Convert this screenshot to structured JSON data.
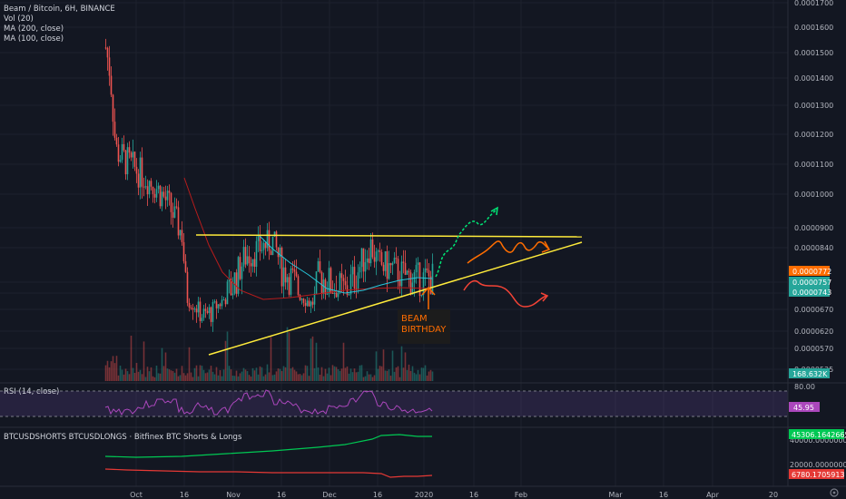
{
  "header": {
    "symbol": "Beam / Bitcoin, 6H, BINANCE",
    "vol": "Vol (20)",
    "ma200": "MA (200, close)",
    "ma100": "MA (100, close)"
  },
  "rsi_label": "RSI (14, close)",
  "shorts_label": "BTCUSDSHORTS BTCUSDLONGS · Bitfinex BTC Shorts & Longs",
  "annotation": {
    "line1": "BEAM",
    "line2": "BIRTHDAY"
  },
  "colors": {
    "bg": "#131722",
    "grid": "#1e222d",
    "up": "#26a69a",
    "down": "#ef5350",
    "ma200": "#b71c1c",
    "ma100": "#26c6da",
    "trend": "#ffeb3b",
    "arrow_green": "#00e676",
    "arrow_orange": "#ff6d00",
    "arrow_red": "#f44336",
    "rsi": "#ab47bc",
    "shorts": "#00c853",
    "longs": "#e53935"
  },
  "price_axis": [
    "0.0001700",
    "0.0001600",
    "0.0001500",
    "0.0001400",
    "0.0001300",
    "0.0001200",
    "0.0001100",
    "0.0001000",
    "0.0000900",
    "0.0000840",
    "0.0000757",
    "0.0000743",
    "0.0000670",
    "0.0000620",
    "0.0000570",
    "0.0000525"
  ],
  "price_badges": [
    {
      "text": "0.0000772",
      "color": "#ff6d00"
    },
    {
      "text": "0.0000757",
      "color": "#26a69a"
    },
    {
      "text": "0.0000743",
      "color": "#26a69a"
    },
    {
      "text": "168.632K",
      "color": "#26a69a"
    }
  ],
  "rsi_axis": [
    "80.00"
  ],
  "rsi_badge": {
    "text": "45.95",
    "color": "#ab47bc"
  },
  "shorts_axis": [
    "40000.0000000",
    "20000.0000000"
  ],
  "shorts_badges": [
    {
      "text": "45306.1642665",
      "color": "#00c853"
    },
    {
      "text": "6780.1705913",
      "color": "#e53935"
    }
  ],
  "time_axis": [
    "Oct",
    "16",
    "Nov",
    "16",
    "Dec",
    "16",
    "2020",
    "16",
    "Feb",
    "Mar",
    "16",
    "Apr",
    "20"
  ],
  "chart_data": {
    "type": "candlestick",
    "title": "Beam / Bitcoin, 6H, BINANCE",
    "x_range": [
      "Sep 2019",
      "Apr 2020"
    ],
    "y_range": [
      5.1e-05,
      0.00017
    ],
    "close_approx": [
      {
        "date": "Sep 20",
        "value": 0.000152
      },
      {
        "date": "Sep 22",
        "value": 0.00013
      },
      {
        "date": "Sep 26",
        "value": 0.000113
      },
      {
        "date": "Oct 1",
        "value": 0.00011
      },
      {
        "date": "Oct 8",
        "value": 0.000102
      },
      {
        "date": "Oct 15",
        "value": 9.2e-05
      },
      {
        "date": "Oct 21",
        "value": 7.2e-05
      },
      {
        "date": "Oct 25",
        "value": 6.2e-05
      },
      {
        "date": "Nov 1",
        "value": 7.5e-05
      },
      {
        "date": "Nov 10",
        "value": 8.6e-05
      },
      {
        "date": "Nov 18",
        "value": 7.7e-05
      },
      {
        "date": "Nov 26",
        "value": 6.9e-05
      },
      {
        "date": "Dec 5",
        "value": 7.6e-05
      },
      {
        "date": "Dec 13",
        "value": 8.5e-05
      },
      {
        "date": "Dec 20",
        "value": 7.8e-05
      },
      {
        "date": "Dec 28",
        "value": 7.6e-05
      }
    ],
    "last_price": 7.72e-05,
    "ma100_last": 7.57e-05,
    "ma200_last": 7.43e-05,
    "volume_last": "168.632K",
    "rsi_last": 45.95,
    "btc_shorts_last": 45306.1642665,
    "btc_longs_last": 6780.1705913
  }
}
